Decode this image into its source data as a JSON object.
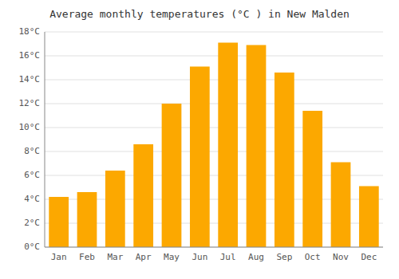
{
  "chart_data": {
    "type": "bar",
    "title": "Average monthly temperatures (°C ) in New Malden",
    "categories": [
      "Jan",
      "Feb",
      "Mar",
      "Apr",
      "May",
      "Jun",
      "Jul",
      "Aug",
      "Sep",
      "Oct",
      "Nov",
      "Dec"
    ],
    "values": [
      4.2,
      4.6,
      6.4,
      8.6,
      12.0,
      15.1,
      17.1,
      16.9,
      14.6,
      11.4,
      7.1,
      5.1
    ],
    "color": "#FCA800",
    "ylim": [
      0,
      18
    ],
    "yticks": [
      {
        "value": 0,
        "label": "0°C"
      },
      {
        "value": 2,
        "label": "2°C"
      },
      {
        "value": 4,
        "label": "4°C"
      },
      {
        "value": 6,
        "label": "6°C"
      },
      {
        "value": 8,
        "label": "8°C"
      },
      {
        "value": 10,
        "label": "10°C"
      },
      {
        "value": 12,
        "label": "12°C"
      },
      {
        "value": 14,
        "label": "14°C"
      },
      {
        "value": 16,
        "label": "16°C"
      },
      {
        "value": 18,
        "label": "18°C"
      }
    ],
    "grid": true
  }
}
